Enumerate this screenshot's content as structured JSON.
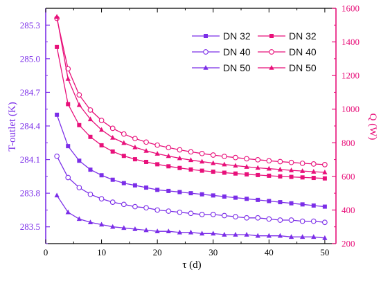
{
  "colors": {
    "left": "#7b2ee8",
    "right": "#e8107a",
    "axis": "#000000"
  },
  "chart_data": {
    "type": "line",
    "xlabel": "τ (d)",
    "ylabel_left": "T-outlet (K)",
    "ylabel_right": "Q (W)",
    "xlim": [
      0,
      52
    ],
    "ylim_left": [
      283.35,
      285.45
    ],
    "ylim_right": [
      200,
      1600
    ],
    "xticks": [
      "0",
      "10",
      "20",
      "30",
      "40",
      "50"
    ],
    "yticks_left": [
      "283.5",
      "283.8",
      "284.1",
      "284.4",
      "284.7",
      "285.0",
      "285.3"
    ],
    "yticks_right": [
      "200",
      "400",
      "600",
      "800",
      "1000",
      "1200",
      "1400",
      "1600"
    ],
    "grid": false,
    "legend_position": "top-right",
    "x": [
      2,
      4,
      6,
      8,
      10,
      12,
      14,
      16,
      18,
      20,
      22,
      24,
      26,
      28,
      30,
      32,
      34,
      36,
      38,
      40,
      42,
      44,
      46,
      48,
      50
    ],
    "series": [
      {
        "name": "DN 32",
        "axis": "left",
        "marker": "square",
        "values": [
          284.5,
          284.22,
          284.09,
          284.01,
          283.96,
          283.92,
          283.89,
          283.87,
          283.85,
          283.83,
          283.82,
          283.81,
          283.8,
          283.79,
          283.78,
          283.77,
          283.76,
          283.75,
          283.74,
          283.73,
          283.72,
          283.71,
          283.7,
          283.69,
          283.68
        ]
      },
      {
        "name": "DN 40",
        "axis": "left",
        "marker": "circle-open",
        "values": [
          284.13,
          283.94,
          283.85,
          283.79,
          283.75,
          283.72,
          283.7,
          283.68,
          283.67,
          283.65,
          283.64,
          283.63,
          283.62,
          283.61,
          283.61,
          283.6,
          283.59,
          283.58,
          283.58,
          283.57,
          283.56,
          283.56,
          283.55,
          283.55,
          283.54
        ]
      },
      {
        "name": "DN 50",
        "axis": "left",
        "marker": "triangle",
        "values": [
          283.78,
          283.63,
          283.57,
          283.54,
          283.52,
          283.5,
          283.49,
          283.48,
          283.47,
          283.46,
          283.46,
          283.45,
          283.45,
          283.44,
          283.44,
          283.43,
          283.43,
          283.43,
          283.42,
          283.42,
          283.42,
          283.41,
          283.41,
          283.41,
          283.4
        ]
      },
      {
        "name": "DN 32",
        "axis": "right",
        "marker": "square",
        "values": [
          1370,
          1030,
          905,
          835,
          785,
          748,
          722,
          702,
          686,
          672,
          660,
          650,
          641,
          634,
          628,
          622,
          617,
          612,
          608,
          604,
          600,
          597,
          594,
          591,
          588
        ]
      },
      {
        "name": "DN 40",
        "axis": "right",
        "marker": "circle-open",
        "values": [
          1540,
          1240,
          1085,
          995,
          933,
          886,
          852,
          825,
          804,
          786,
          771,
          758,
          746,
          736,
          727,
          719,
          712,
          705,
          699,
          693,
          688,
          683,
          678,
          674,
          670
        ]
      },
      {
        "name": "DN 50",
        "axis": "right",
        "marker": "triangle",
        "values": [
          1550,
          1180,
          1025,
          940,
          877,
          830,
          799,
          773,
          752,
          735,
          721,
          708,
          697,
          688,
          679,
          671,
          664,
          657,
          651,
          646,
          641,
          636,
          632,
          628,
          624
        ]
      }
    ]
  }
}
